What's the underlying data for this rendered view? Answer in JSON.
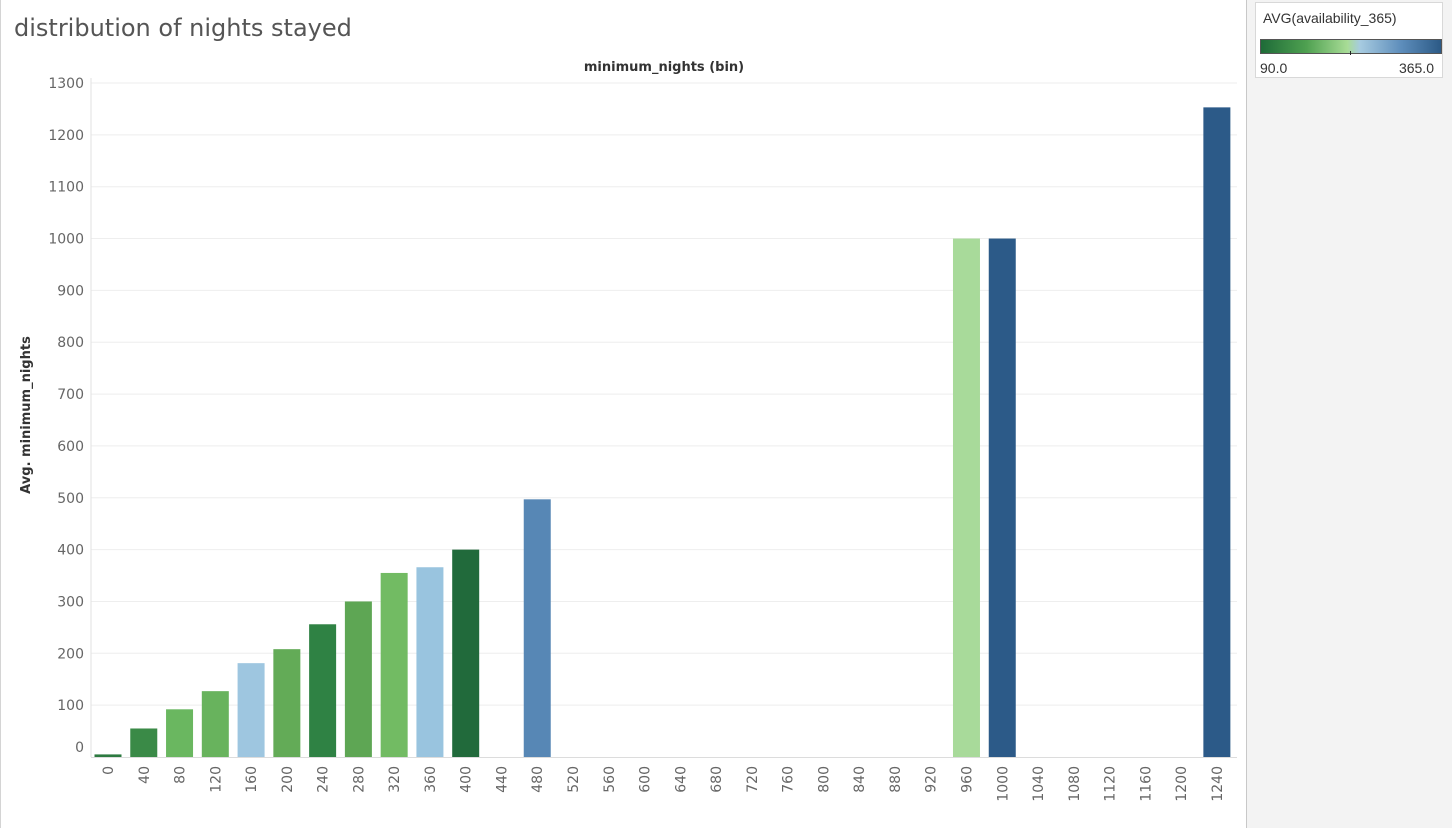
{
  "page": {
    "title": "distribution of nights stayed"
  },
  "legend": {
    "title": "AVG(availability_365)",
    "min_label": "90.0",
    "max_label": "365.0",
    "min": 90.0,
    "max": 365.0
  },
  "chart_data": {
    "type": "bar",
    "title": "",
    "column_header": "minimum_nights (bin)",
    "ylabel": "Avg. minimum_nights",
    "xlabel": "",
    "ylim": [
      0,
      1300
    ],
    "yticks": [
      0,
      100,
      200,
      300,
      400,
      500,
      600,
      700,
      800,
      900,
      1000,
      1100,
      1200,
      1300
    ],
    "grid": true,
    "legend_placement": "top-right",
    "categories": [
      "0",
      "40",
      "80",
      "120",
      "160",
      "200",
      "240",
      "280",
      "320",
      "360",
      "400",
      "440",
      "480",
      "520",
      "560",
      "600",
      "640",
      "680",
      "720",
      "760",
      "800",
      "840",
      "880",
      "920",
      "960",
      "1000",
      "1040",
      "1080",
      "1120",
      "1160",
      "1200",
      "1240"
    ],
    "values": [
      5,
      55,
      92,
      127,
      181,
      208,
      256,
      300,
      355,
      366,
      400,
      null,
      497,
      null,
      null,
      null,
      null,
      null,
      null,
      null,
      null,
      null,
      null,
      null,
      1000,
      1000,
      null,
      null,
      null,
      null,
      null,
      1253
    ],
    "bar_colors": [
      "#2d7a40",
      "#3a8a47",
      "#6ab760",
      "#68b35d",
      "#9ec6e0",
      "#63ab57",
      "#2f8244",
      "#5ea654",
      "#72bb63",
      "#99c4df",
      "#216a3b",
      null,
      "#5787b5",
      null,
      null,
      null,
      null,
      null,
      null,
      null,
      null,
      null,
      null,
      null,
      "#a8da9a",
      "#2c5a88",
      null,
      null,
      null,
      null,
      null,
      "#2c5a88"
    ]
  }
}
